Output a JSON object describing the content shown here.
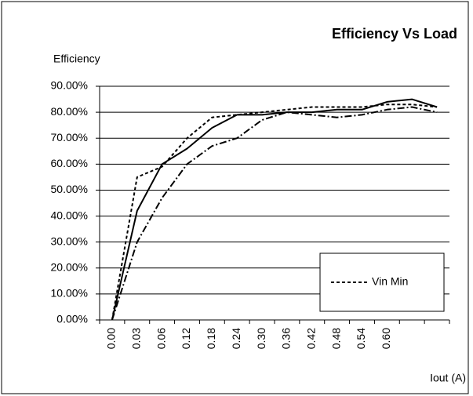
{
  "chart_data": {
    "type": "line",
    "title": "Efficiency Vs Load",
    "y_label": "Efficiency",
    "x_label": "Iout (A)",
    "categories": [
      "0.00",
      "0.03",
      "0.06",
      "0.12",
      "0.18",
      "0.24",
      "0.30",
      "0.36",
      "0.42",
      "0.48",
      "0.54",
      "0.60",
      null,
      null
    ],
    "series": [
      {
        "color": "#000000",
        "dash": "none",
        "values": [
          0,
          42,
          60,
          66,
          74,
          79,
          79,
          80,
          80,
          81,
          81,
          84,
          85,
          82
        ]
      },
      {
        "name": "Vin Min",
        "color": "#000000",
        "dash": "4 3",
        "values": [
          0,
          55,
          59,
          70,
          78,
          79,
          80,
          81,
          82,
          82,
          82,
          83,
          83,
          82
        ]
      },
      {
        "color": "#000000",
        "dash": "9 3 2 3",
        "values": [
          0,
          30,
          47,
          60,
          67,
          70,
          77,
          80,
          79,
          78,
          79,
          81,
          82,
          80
        ]
      }
    ],
    "ylim": [
      0,
      90
    ],
    "yticks": [
      {
        "value": 0,
        "label": "0.00%"
      },
      {
        "value": 10,
        "label": "10.00%"
      },
      {
        "value": 20,
        "label": "20.00%"
      },
      {
        "value": 30,
        "label": "30.00%"
      },
      {
        "value": 40,
        "label": "40.00%"
      },
      {
        "value": 50,
        "label": "50.00%"
      },
      {
        "value": 60,
        "label": "60.00%"
      },
      {
        "value": 70,
        "label": "70.00%"
      },
      {
        "value": 80,
        "label": "80.00%"
      },
      {
        "value": 90,
        "label": "90.00%"
      }
    ],
    "grid": true,
    "legend": "lower right"
  }
}
